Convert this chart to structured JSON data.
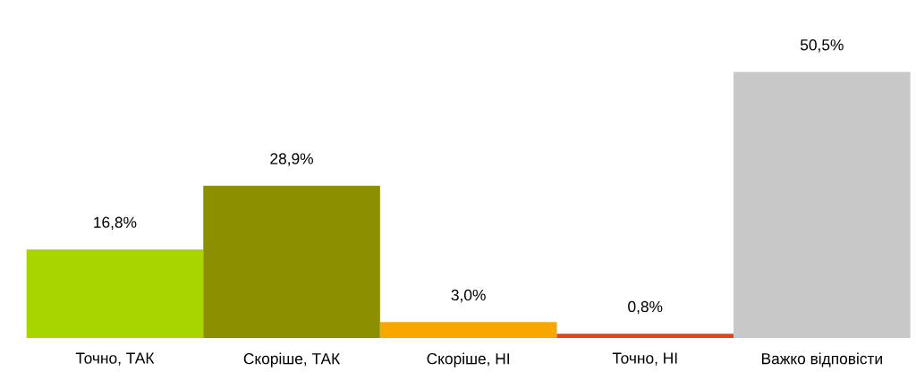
{
  "chart_data": {
    "type": "bar",
    "categories": [
      "Точно, ТАК",
      "Скоріше, ТАК",
      "Скоріше, НІ",
      "Точно, НІ",
      "Важко відповісти"
    ],
    "values": [
      16.8,
      28.9,
      3.0,
      0.8,
      50.5
    ],
    "colors": [
      "#a8d400",
      "#8c8f00",
      "#f7a800",
      "#e8401c",
      "#c8c8c8"
    ],
    "value_labels": [
      "16,8%",
      "28,9%",
      "3,0%",
      "0,8%",
      "50,5%"
    ]
  }
}
